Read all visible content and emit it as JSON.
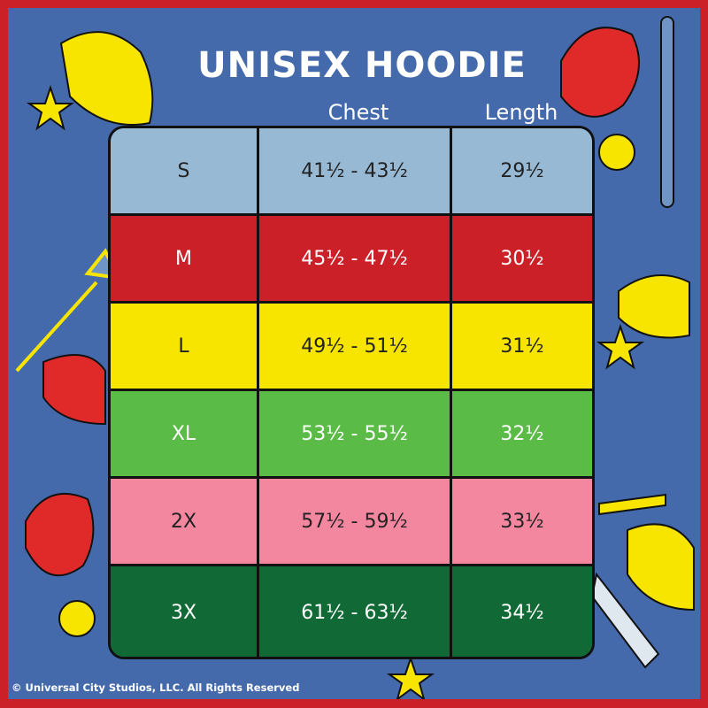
{
  "title": "UNISEX HOODIE",
  "columns": [
    "Chest",
    "Length"
  ],
  "rows": [
    {
      "size": "S",
      "chest": "41½ - 43½",
      "length": "29½",
      "bg": "#97b9d4",
      "fg": "#222222"
    },
    {
      "size": "M",
      "chest": "45½ - 47½",
      "length": "30½",
      "bg": "#cc2029",
      "fg": "#ffffff"
    },
    {
      "size": "L",
      "chest": "49½ - 51½",
      "length": "31½",
      "bg": "#f7e500",
      "fg": "#222222"
    },
    {
      "size": "XL",
      "chest": "53½ - 55½",
      "length": "32½",
      "bg": "#5bbb47",
      "fg": "#ffffff"
    },
    {
      "size": "2X",
      "chest": "57½ - 59½",
      "length": "33½",
      "bg": "#f2879f",
      "fg": "#222222"
    },
    {
      "size": "3X",
      "chest": "61½ - 63½",
      "length": "34½",
      "bg": "#116a35",
      "fg": "#ffffff"
    }
  ],
  "copyright": "© Universal City Studios, LLC. All Rights Reserved",
  "colors": {
    "border": "#cc2029",
    "background": "#446aac"
  }
}
